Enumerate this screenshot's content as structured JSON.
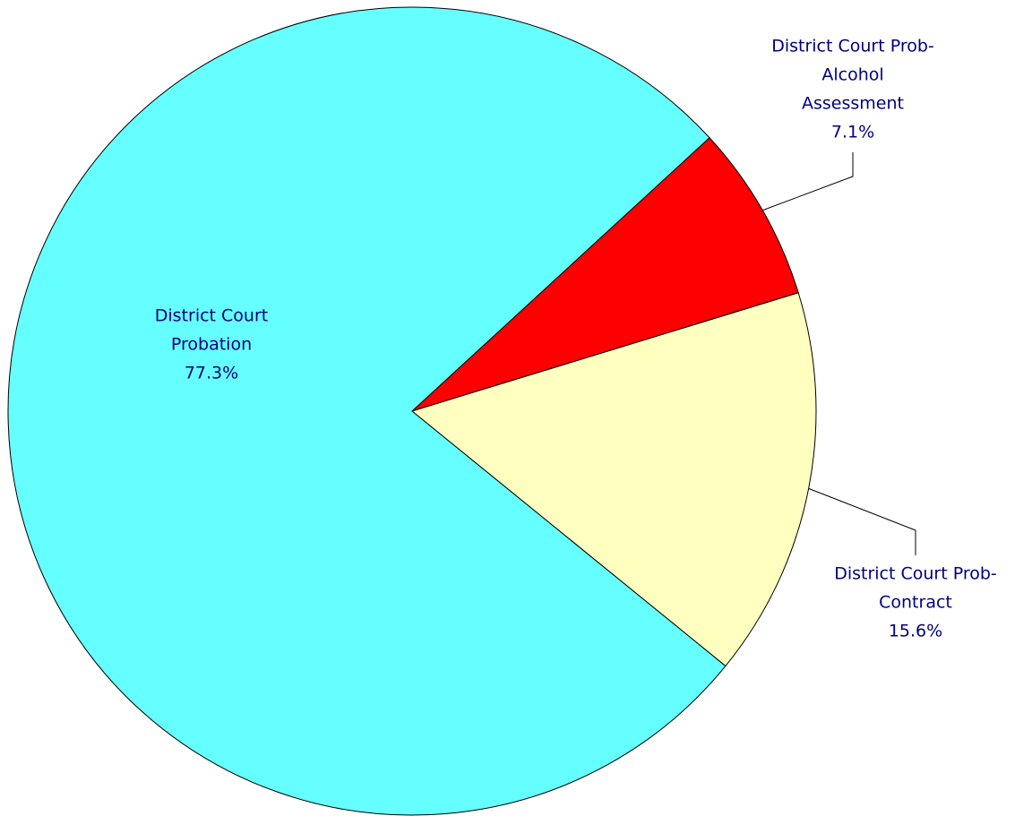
{
  "chart_data": {
    "type": "pie",
    "categories": [
      [
        "District Court Prob-",
        "Alcohol",
        "Assessment"
      ],
      [
        "District Court Prob-",
        "Contract"
      ],
      [
        "District Court",
        "Probation"
      ]
    ],
    "values": [
      7.1,
      15.6,
      77.3
    ],
    "value_labels": [
      "7.1%",
      "15.6%",
      "77.3%"
    ],
    "colors": [
      "#ff0000",
      "#ffffc0",
      "#66ffff"
    ]
  }
}
